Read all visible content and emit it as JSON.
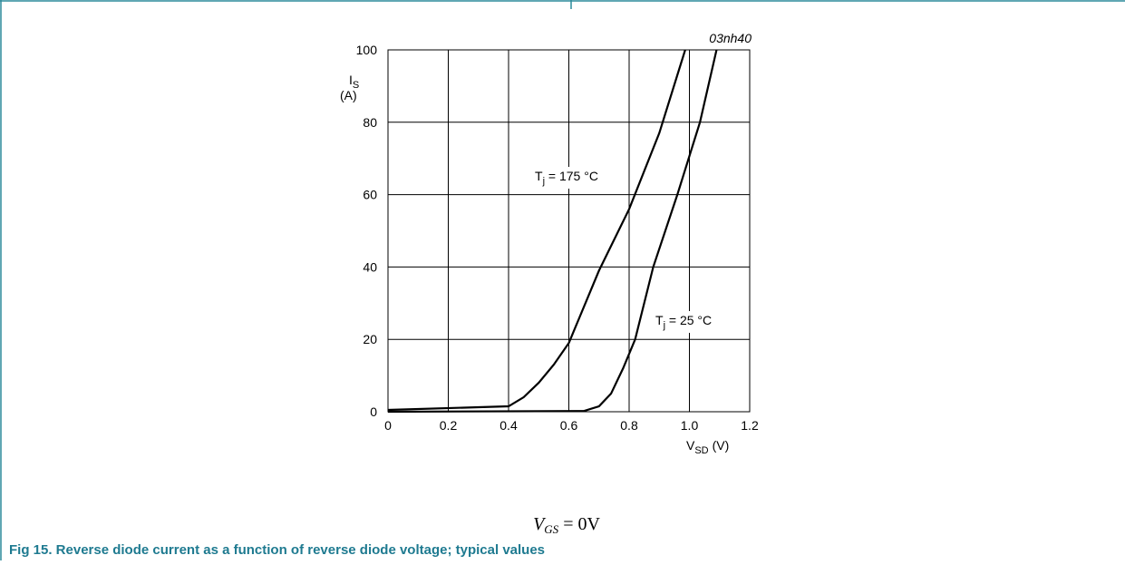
{
  "chart_data": {
    "type": "line",
    "code": "03nh40",
    "ylabel": {
      "symbol": "I",
      "subscript": "S",
      "unit": "(A)"
    },
    "xlabel": {
      "symbol": "V",
      "subscript": "SD",
      "unit": "(V)"
    },
    "xlim": [
      0,
      1.2
    ],
    "xticks": [
      0,
      0.2,
      0.4,
      0.6,
      0.8,
      {
        "value": 1,
        "label": "1.0"
      },
      1.2
    ],
    "ylim": [
      0,
      100
    ],
    "yticks": [
      0,
      20,
      40,
      60,
      80,
      100
    ],
    "grid": true,
    "series": [
      {
        "label": {
          "symbol": "T",
          "subscript": "j",
          "text": " = 175 °C"
        },
        "color": "#000000",
        "x": [
          0,
          0.4,
          0.45,
          0.5,
          0.55,
          0.6,
          0.7,
          0.8,
          0.9,
          0.986
        ],
        "values": [
          0.5,
          1.5,
          4,
          8,
          13,
          19,
          39,
          56,
          77,
          100
        ]
      },
      {
        "label": {
          "symbol": "T",
          "subscript": "j",
          "text": " = 25 °C"
        },
        "color": "#000000",
        "x": [
          0,
          0.65,
          0.7,
          0.74,
          0.78,
          0.82,
          0.88,
          0.96,
          1.035,
          1.09
        ],
        "values": [
          0,
          0.2,
          1.5,
          5,
          12,
          20,
          40,
          60,
          80,
          100
        ]
      }
    ],
    "condition": {
      "symbol": "V",
      "subscript": "GS",
      "text": " = 0V"
    },
    "caption": "Fig 15.  Reverse diode current as a function of reverse diode voltage; typical values"
  }
}
